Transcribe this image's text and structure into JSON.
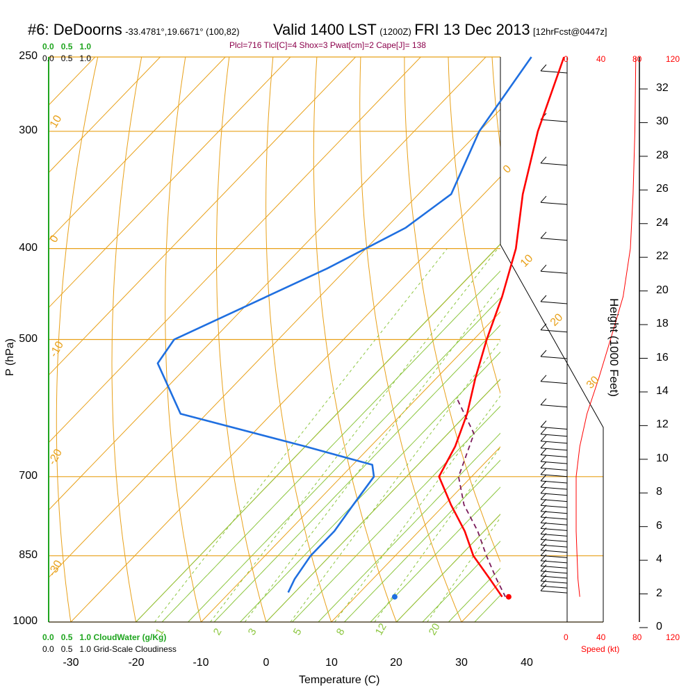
{
  "header": {
    "station": "#6: DeDoorns",
    "coords": "-33.4781°,19.6671° (100,82)",
    "valid": "Valid 1400 LST",
    "zulu": "(1200Z)",
    "date": "FRI 13 Dec 2013",
    "forecast": "[12hrFcst@0447z]",
    "indices": "Plcl=716 Tlcl[C]=4 Shox=3 Pwat[cm]=2 Cape[J]= 138"
  },
  "legend": {
    "cloudwater_scale": [
      "0.0",
      "0.5",
      "1.0"
    ],
    "cloudwater_label": "CloudWater (g/Kg)",
    "cloudiness_scale": [
      "0.0",
      "0.5",
      "1.0"
    ],
    "cloudiness_label": "Grid-Scale Cloudiness",
    "speed_label": "Speed (kt)",
    "speed_ticks": [
      "0",
      "40",
      "80",
      "120"
    ]
  },
  "colors": {
    "isotherm": "#e8a018",
    "dry_adiabat": "#e8a018",
    "moist_adiabat": "#8cc63f",
    "mixing_ratio": "#8cc63f",
    "temperature": "#ff0000",
    "dewpoint": "#1f6fe0",
    "parcel": "#7a1a5a",
    "wind_speed": "#ff0000",
    "cloudwater": "#1fa51f"
  },
  "chart_data": {
    "type": "skew-t",
    "xlabel": "Temperature (C)",
    "ylabel": "P (hPa)",
    "right_label": "Height (1000 Feet)",
    "xlim": [
      -35,
      35
    ],
    "ylim": [
      1000,
      250
    ],
    "x_ticks": [
      -30,
      -20,
      -10,
      0,
      10,
      20,
      30,
      40
    ],
    "p_ticks": [
      250,
      300,
      400,
      500,
      700,
      850,
      1000
    ],
    "height_ticks": [
      0,
      2,
      4,
      6,
      8,
      10,
      12,
      14,
      16,
      18,
      20,
      22,
      24,
      26,
      28,
      30,
      32
    ],
    "isotherm_labels": [
      "10",
      "0",
      "-10",
      "-20",
      "-30",
      "0",
      "10",
      "20",
      "30"
    ],
    "mixing_ratio_labels": [
      "1",
      "2",
      "3",
      "5",
      "8",
      "12",
      "20"
    ],
    "temperature": [
      {
        "p": 250,
        "t": -38
      },
      {
        "p": 300,
        "t": -31
      },
      {
        "p": 350,
        "t": -24
      },
      {
        "p": 400,
        "t": -17
      },
      {
        "p": 450,
        "t": -12
      },
      {
        "p": 500,
        "t": -8
      },
      {
        "p": 550,
        "t": -4
      },
      {
        "p": 600,
        "t": 0
      },
      {
        "p": 650,
        "t": 3
      },
      {
        "p": 700,
        "t": 5
      },
      {
        "p": 750,
        "t": 11
      },
      {
        "p": 800,
        "t": 17
      },
      {
        "p": 850,
        "t": 22
      },
      {
        "p": 900,
        "t": 28
      },
      {
        "p": 940,
        "t": 32.5
      }
    ],
    "dewpoint": [
      {
        "p": 250,
        "t": -43
      },
      {
        "p": 300,
        "t": -40
      },
      {
        "p": 350,
        "t": -35
      },
      {
        "p": 380,
        "t": -37
      },
      {
        "p": 420,
        "t": -43
      },
      {
        "p": 500,
        "t": -56
      },
      {
        "p": 530,
        "t": -55
      },
      {
        "p": 600,
        "t": -44
      },
      {
        "p": 650,
        "t": -20
      },
      {
        "p": 680,
        "t": -7
      },
      {
        "p": 700,
        "t": -5
      },
      {
        "p": 750,
        "t": -4
      },
      {
        "p": 800,
        "t": -3
      },
      {
        "p": 850,
        "t": -3
      },
      {
        "p": 900,
        "t": -2
      },
      {
        "p": 930,
        "t": -1
      }
    ],
    "parcel": [
      {
        "p": 580,
        "t": -3.5
      },
      {
        "p": 630,
        "t": 4
      },
      {
        "p": 700,
        "t": 8
      },
      {
        "p": 750,
        "t": 13
      },
      {
        "p": 800,
        "t": 19
      },
      {
        "p": 850,
        "t": 24
      },
      {
        "p": 900,
        "t": 29
      },
      {
        "p": 940,
        "t": 33
      }
    ],
    "surface_temp": {
      "p": 940,
      "t": 33.5
    },
    "surface_dewpoint": {
      "p": 940,
      "t": 16
    },
    "wind_speed_profile": [
      {
        "p": 250,
        "kt": 76
      },
      {
        "p": 300,
        "kt": 75
      },
      {
        "p": 350,
        "kt": 73
      },
      {
        "p": 400,
        "kt": 70
      },
      {
        "p": 450,
        "kt": 62
      },
      {
        "p": 500,
        "kt": 48
      },
      {
        "p": 550,
        "kt": 35
      },
      {
        "p": 600,
        "kt": 22
      },
      {
        "p": 650,
        "kt": 14
      },
      {
        "p": 700,
        "kt": 10
      },
      {
        "p": 750,
        "kt": 10
      },
      {
        "p": 800,
        "kt": 10
      },
      {
        "p": 850,
        "kt": 11
      },
      {
        "p": 900,
        "kt": 12
      },
      {
        "p": 940,
        "kt": 14
      }
    ]
  }
}
